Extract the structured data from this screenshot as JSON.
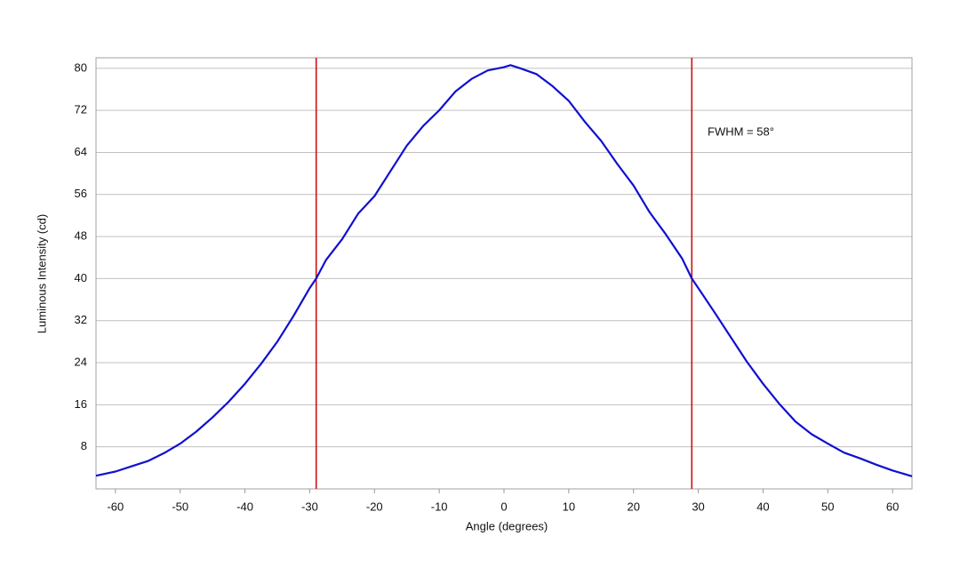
{
  "chart_data": {
    "type": "line",
    "xlabel": "Angle (degrees)",
    "ylabel": "Luminous Intensity (cd)",
    "annotation": "FWHM = 58°",
    "x": [
      -63,
      -60,
      -57.5,
      -55,
      -52.5,
      -50,
      -47.5,
      -45,
      -42.5,
      -40,
      -37.5,
      -35,
      -32.5,
      -30,
      -29,
      -27.5,
      -25,
      -22.5,
      -20,
      -17.5,
      -15,
      -12.5,
      -10,
      -7.5,
      -5,
      -2.5,
      0,
      1,
      2.5,
      5,
      7.5,
      10,
      12.5,
      15,
      17.5,
      20,
      22.5,
      25,
      27.5,
      29,
      30,
      32.5,
      35,
      37.5,
      40,
      42.5,
      45,
      47.5,
      50,
      52.5,
      55,
      57.5,
      60,
      63
    ],
    "series": [
      {
        "name": "Luminous Intensity",
        "color": "#1010d0",
        "values": [
          2.5,
          3.3,
          4.3,
          5.3,
          6.8,
          8.6,
          10.9,
          13.6,
          16.6,
          20.0,
          23.8,
          28.0,
          32.9,
          38.2,
          40.0,
          43.5,
          47.5,
          52.4,
          55.7,
          60.5,
          65.3,
          69.0,
          72.0,
          75.6,
          78.0,
          79.6,
          80.2,
          80.6,
          80.0,
          78.9,
          76.6,
          73.8,
          69.8,
          66.2,
          61.8,
          57.7,
          52.6,
          48.4,
          43.8,
          40.0,
          38.2,
          33.6,
          28.9,
          24.2,
          20.0,
          16.2,
          12.8,
          10.4,
          8.6,
          6.9,
          5.8,
          4.6,
          3.5,
          2.4
        ]
      }
    ],
    "vlines": [
      -29,
      29
    ],
    "vline_color": "#d01010",
    "xlim": [
      -63,
      63
    ],
    "xticks": [
      -60,
      -50,
      -40,
      -30,
      -20,
      -10,
      0,
      10,
      20,
      30,
      40,
      50,
      60
    ],
    "ylim": [
      0,
      82
    ],
    "yticks": [
      8,
      16,
      24,
      32,
      40,
      48,
      56,
      64,
      72,
      80
    ],
    "grid": true
  }
}
